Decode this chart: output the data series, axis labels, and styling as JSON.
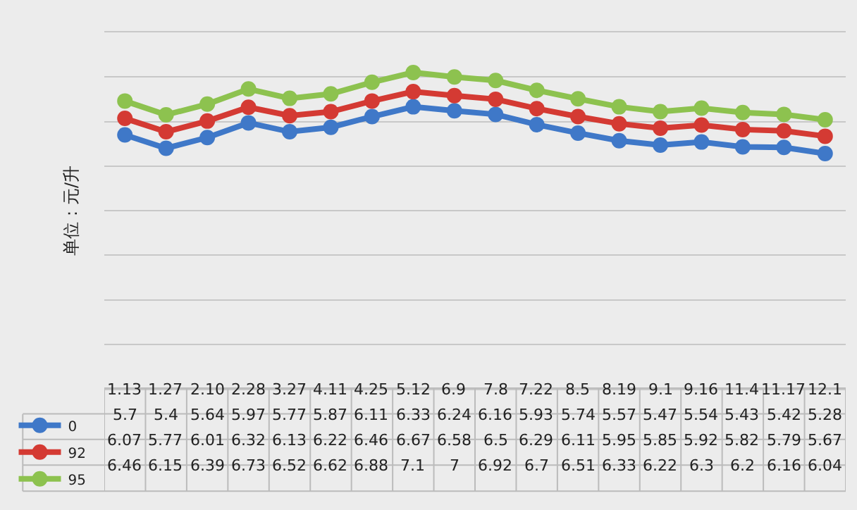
{
  "chart_data": {
    "type": "line",
    "ylabel": "单位：元/升",
    "categories": [
      "1.13",
      "1.27",
      "2.10",
      "2.28",
      "3.27",
      "4.11",
      "4.25",
      "5.12",
      "6.9",
      "7.8",
      "7.22",
      "8.5",
      "8.19",
      "9.1",
      "9.16",
      "11.4",
      "11.17",
      "12.1"
    ],
    "series": [
      {
        "name": "0",
        "color": "#3f78c8",
        "values": [
          5.7,
          5.4,
          5.64,
          5.97,
          5.77,
          5.87,
          6.11,
          6.33,
          6.24,
          6.16,
          5.93,
          5.74,
          5.57,
          5.47,
          5.54,
          5.43,
          5.42,
          5.28
        ]
      },
      {
        "name": "92",
        "color": "#d43a33",
        "values": [
          6.07,
          5.77,
          6.01,
          6.32,
          6.13,
          6.22,
          6.46,
          6.67,
          6.58,
          6.5,
          6.29,
          6.11,
          5.95,
          5.85,
          5.92,
          5.82,
          5.79,
          5.67
        ]
      },
      {
        "name": "95",
        "color": "#8dc24f",
        "values": [
          6.46,
          6.15,
          6.39,
          6.73,
          6.52,
          6.62,
          6.88,
          7.1,
          7,
          6.92,
          6.7,
          6.51,
          6.33,
          6.22,
          6.3,
          6.2,
          6.16,
          6.04
        ]
      }
    ],
    "ylim": [
      0,
      8
    ],
    "yticks": [
      {
        "value": 0,
        "label": null
      },
      {
        "value": 1,
        "label": null
      },
      {
        "value": 2,
        "label": null
      },
      {
        "value": 3,
        "label": null
      },
      {
        "value": 4,
        "label": null
      },
      {
        "value": 5,
        "label": null
      },
      {
        "value": 6,
        "label": null
      },
      {
        "value": 7,
        "label": null
      },
      {
        "value": 8,
        "label": null
      }
    ],
    "tick_labels": "x",
    "grid": "y",
    "marker": "circle",
    "line_style": "solid",
    "data_labels": true,
    "legend": "bottom left"
  }
}
